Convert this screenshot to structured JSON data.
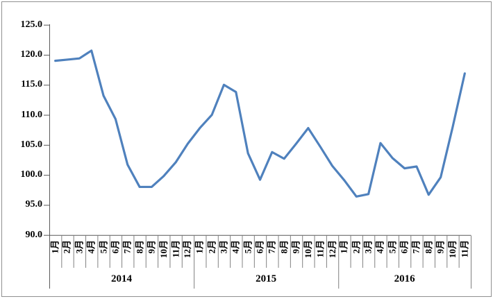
{
  "chart": {
    "background": "#FFFFFF",
    "frame_border_color": "#8F8F8F",
    "line_color": "#4F81BD",
    "axis_color": "#595959",
    "divider_color": "#808080"
  },
  "chart_data": {
    "type": "line",
    "title": "",
    "xlabel": "",
    "ylabel": "",
    "legend": "none",
    "grid": false,
    "ylim": [
      90,
      125
    ],
    "ytick_step": 5,
    "ytick_labels": [
      "90.0",
      "95.0",
      "100.0",
      "105.0",
      "110.0",
      "115.0",
      "120.0",
      "125.0"
    ],
    "groups": [
      {
        "year": "2014",
        "months": [
          "1月",
          "2月",
          "3月",
          "4月",
          "5月",
          "6月",
          "7月",
          "8月",
          "9月",
          "10月",
          "11月",
          "12月"
        ],
        "values": [
          119.0,
          119.2,
          119.4,
          120.7,
          113.2,
          109.3,
          101.7,
          98.0,
          98.0,
          99.8,
          102.1,
          105.2
        ]
      },
      {
        "year": "2015",
        "months": [
          "1月",
          "2月",
          "3月",
          "4月",
          "5月",
          "6月",
          "7月",
          "8月",
          "9月",
          "10月",
          "11月",
          "12月"
        ],
        "values": [
          107.8,
          110.0,
          115.0,
          113.8,
          103.6,
          99.2,
          103.8,
          102.7,
          105.2,
          107.8,
          104.7,
          101.5
        ]
      },
      {
        "year": "2016",
        "months": [
          "1月",
          "2月",
          "3月",
          "4月",
          "5月",
          "6月",
          "7月",
          "8月",
          "9月",
          "10月",
          "11月"
        ],
        "values": [
          99.1,
          96.4,
          96.8,
          105.3,
          102.8,
          101.1,
          101.4,
          96.7,
          99.6,
          108.0,
          116.9
        ]
      }
    ]
  }
}
